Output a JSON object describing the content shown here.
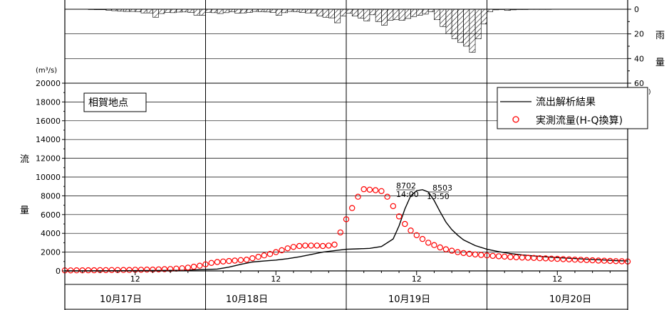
{
  "chart_data": [
    {
      "type": "bar",
      "title": "",
      "ylabel": "雨量",
      "yunit": "(mm)",
      "ylim": [
        60,
        0
      ],
      "yticks": [
        "0",
        "20",
        "40",
        "60"
      ],
      "orientation": "hanging-from-top",
      "x_time_range_hours": [
        0,
        96
      ],
      "bar_start_hour": 4,
      "bar_width_hours": 1,
      "values": [
        0.3,
        0.4,
        0.4,
        0.8,
        1.2,
        1.6,
        1.8,
        1.8,
        2.0,
        3.0,
        3.0,
        6.5,
        3.5,
        2.5,
        2.8,
        2.3,
        2.2,
        2.6,
        4.8,
        5.0,
        2.5,
        2.8,
        3.5,
        2.8,
        2.0,
        3.2,
        3.0,
        2.6,
        1.8,
        2.0,
        2.2,
        2.6,
        5.0,
        2.8,
        1.8,
        2.0,
        2.6,
        3.0,
        3.0,
        5.5,
        6.5,
        7.0,
        11.0,
        5.5,
        3.2,
        5.5,
        7.2,
        9.5,
        4.5,
        10.0,
        13.0,
        9.0,
        8.5,
        9.0,
        7.5,
        6.0,
        5.0,
        4.0,
        2.0,
        8.5,
        14.0,
        20.0,
        24.0,
        27.0,
        30.0,
        35.0,
        24.0,
        12.0,
        2.0,
        0.5,
        0.3,
        1.0,
        0.5,
        0.3,
        0.3,
        0.2,
        0.2,
        0.2,
        0.2,
        0.1
      ],
      "grid": true
    },
    {
      "type": "line",
      "title": "",
      "ylabel": "流量",
      "yunit": "(m³/s)",
      "ylim": [
        0,
        20000
      ],
      "yticks": [
        "0",
        "2000",
        "4000",
        "6000",
        "8000",
        "10000",
        "12000",
        "14000",
        "16000",
        "18000",
        "20000"
      ],
      "xlim_hours": [
        0,
        96
      ],
      "x_tick_labels": [
        "12",
        "12",
        "12",
        "12"
      ],
      "x_tick_hours": [
        12,
        36,
        60,
        84
      ],
      "date_labels": [
        "10月17日",
        "10月18日",
        "10月19日",
        "10月20日"
      ],
      "grid": true,
      "series": [
        {
          "name": "流出解析結果",
          "style": "line",
          "color": "#000000",
          "x": [
            0,
            10,
            20,
            26,
            28,
            30,
            32,
            34,
            36,
            38,
            40,
            42,
            44,
            46,
            48,
            50,
            52,
            54,
            56,
            57,
            58,
            59,
            60,
            61,
            62,
            63,
            64,
            65,
            66,
            67,
            68,
            70,
            72,
            74,
            76,
            78,
            80,
            82,
            84,
            86,
            88,
            90,
            92,
            94,
            96
          ],
          "y": [
            0,
            20,
            60,
            200,
            400,
            700,
            950,
            1050,
            1150,
            1300,
            1500,
            1750,
            2000,
            2150,
            2300,
            2350,
            2400,
            2600,
            3400,
            4800,
            6600,
            8000,
            8550,
            8650,
            8400,
            7500,
            6300,
            5200,
            4400,
            3800,
            3300,
            2700,
            2300,
            2050,
            1850,
            1700,
            1600,
            1500,
            1420,
            1350,
            1280,
            1220,
            1160,
            1100,
            1050
          ]
        },
        {
          "name": "実測流量(H-Q換算)",
          "style": "circle-markers",
          "color": "#ff0000",
          "x": [
            0,
            1,
            2,
            3,
            4,
            5,
            6,
            7,
            8,
            9,
            10,
            11,
            12,
            13,
            14,
            15,
            16,
            17,
            18,
            19,
            20,
            21,
            22,
            23,
            24,
            25,
            26,
            27,
            28,
            29,
            30,
            31,
            32,
            33,
            34,
            35,
            36,
            37,
            38,
            39,
            40,
            41,
            42,
            43,
            44,
            45,
            46,
            47,
            48,
            49,
            50,
            51,
            52,
            53,
            54,
            55,
            56,
            57,
            58,
            59,
            60,
            61,
            62,
            63,
            64,
            65,
            66,
            67,
            68,
            69,
            70,
            71,
            72,
            73,
            74,
            75,
            76,
            77,
            78,
            79,
            80,
            81,
            82,
            83,
            84,
            85,
            86,
            87,
            88,
            89,
            90,
            91,
            92,
            93,
            94,
            95,
            96
          ],
          "y": [
            50,
            50,
            60,
            60,
            70,
            70,
            80,
            80,
            90,
            90,
            100,
            100,
            120,
            120,
            140,
            140,
            160,
            180,
            200,
            240,
            280,
            350,
            450,
            550,
            700,
            850,
            950,
            1000,
            1050,
            1100,
            1150,
            1200,
            1350,
            1500,
            1650,
            1800,
            2000,
            2200,
            2400,
            2550,
            2650,
            2700,
            2700,
            2700,
            2650,
            2700,
            2800,
            4100,
            5500,
            6700,
            7900,
            8702,
            8650,
            8600,
            8503,
            7900,
            6900,
            5800,
            5000,
            4300,
            3800,
            3400,
            3000,
            2750,
            2500,
            2300,
            2150,
            2000,
            1900,
            1820,
            1750,
            1700,
            1650,
            1600,
            1560,
            1520,
            1480,
            1450,
            1420,
            1400,
            1380,
            1350,
            1330,
            1300,
            1280,
            1250,
            1230,
            1200,
            1180,
            1150,
            1130,
            1100,
            1080,
            1060,
            1040,
            1020,
            1000
          ]
        }
      ],
      "annotations": [
        {
          "text": "8702",
          "time": "14:00",
          "x_hours": 61,
          "y": 8702
        },
        {
          "text": "8503",
          "time": "13:50",
          "x_hours": 64,
          "y": 8503
        }
      ],
      "location_label": "相賀地点",
      "legend_placement": "top-right"
    }
  ]
}
